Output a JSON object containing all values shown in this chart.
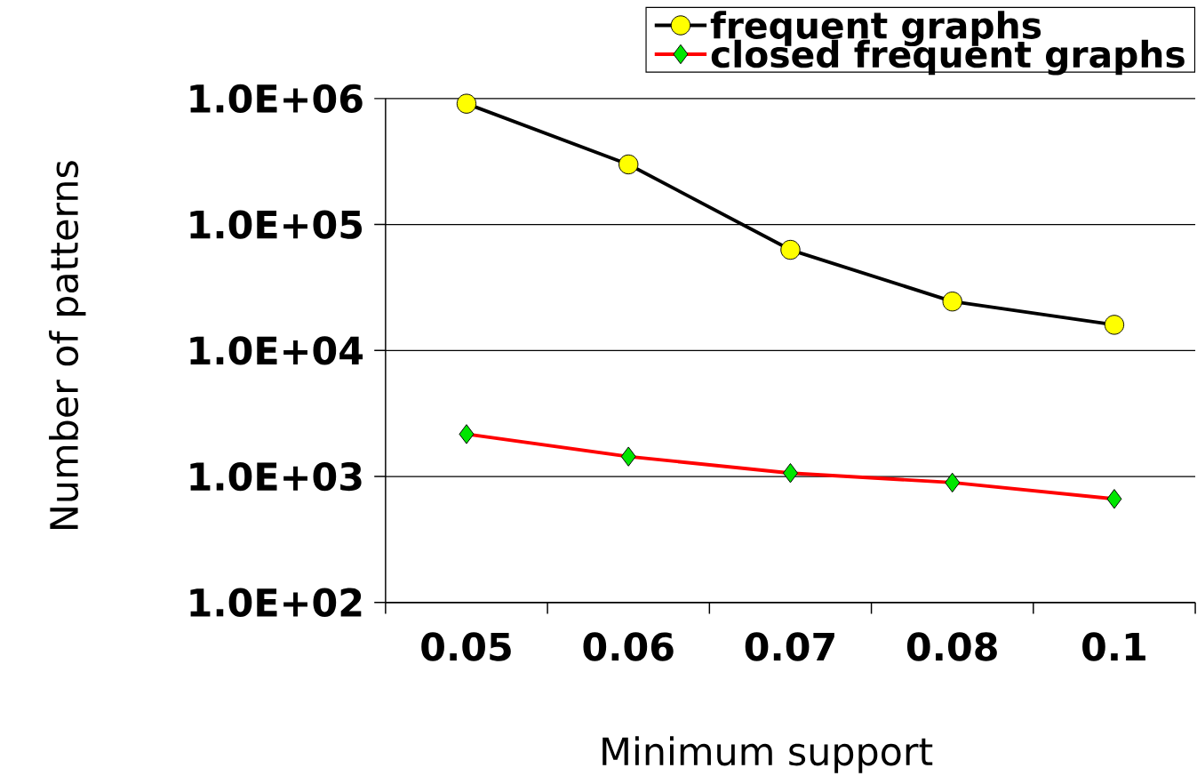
{
  "chart_data": {
    "type": "line",
    "xlabel": "Minimum support",
    "ylabel": "Number of patterns",
    "categories": [
      "0.05",
      "0.06",
      "0.07",
      "0.08",
      "0.1"
    ],
    "series": [
      {
        "name": "frequent graphs",
        "color": "#000000",
        "colors": [
          "#ffff00",
          "#ffff00",
          "#ffff00",
          "#ffff00",
          "#ffff00"
        ],
        "marker": "circle",
        "values": [
          910000,
          300000,
          63000,
          24500,
          16000
        ]
      },
      {
        "name": "closed frequent graphs",
        "color": "#ff0000",
        "colors": [
          "#00e600",
          "#00e600",
          "#00e600",
          "#00e600",
          "#00e600"
        ],
        "marker": "diamond",
        "values": [
          2170,
          1440,
          1065,
          895,
          664
        ]
      }
    ],
    "log": "y",
    "ylim": [
      100,
      1000000
    ],
    "yticks": [
      {
        "value": 100,
        "label": "1.0E+02"
      },
      {
        "value": 1000,
        "label": "1.0E+03"
      },
      {
        "value": 10000,
        "label": "1.0E+04"
      },
      {
        "value": 100000,
        "label": "1.0E+05"
      },
      {
        "value": 1000000,
        "label": "1.0E+06"
      }
    ],
    "grid": "y",
    "legend": "top right",
    "line_style": "solid"
  }
}
